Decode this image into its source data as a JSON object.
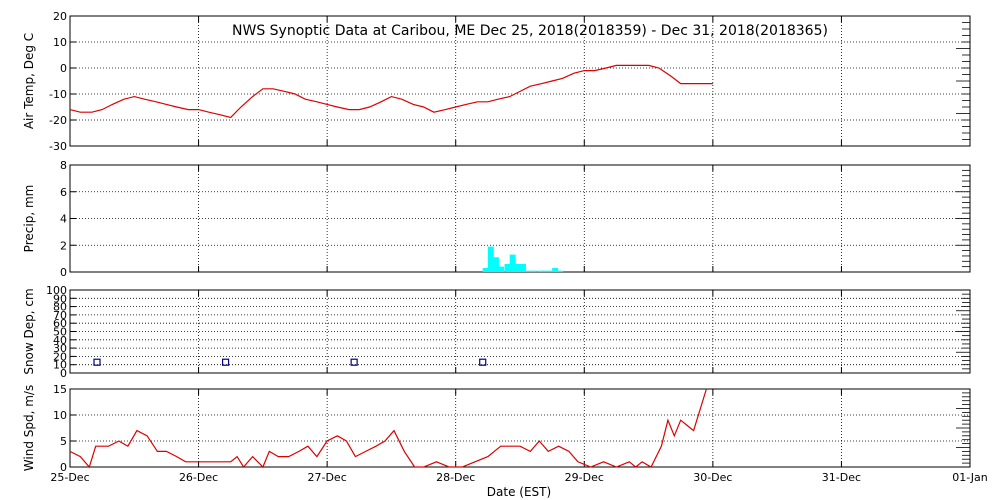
{
  "title": "NWS Synoptic Data at Caribou, ME    Dec 25, 2018(2018359) - Dec 31, 2018(2018365)",
  "xlabel": "Date (EST)",
  "x_tick_labels": [
    "25-Dec",
    "26-Dec",
    "27-Dec",
    "28-Dec",
    "29-Dec",
    "30-Dec",
    "31-Dec",
    "01-Jan"
  ],
  "colors": {
    "temp_line": "#dd0000",
    "precip_bar": "#00ffff",
    "snow_marker": "#00008b",
    "wind_line": "#dd0000"
  },
  "chart_data": [
    {
      "type": "line",
      "ylabel": "Air Temp, Deg C",
      "ylim": [
        -30,
        20
      ],
      "yticks": [
        -30,
        -20,
        -10,
        0,
        10,
        20
      ],
      "xlim": [
        0,
        7
      ],
      "grid": true,
      "series": [
        {
          "x": [
            0,
            0.08,
            0.17,
            0.25,
            0.33,
            0.42,
            0.5,
            0.58,
            0.67,
            0.75,
            0.83,
            0.92,
            1.0,
            1.08,
            1.17,
            1.25,
            1.33,
            1.42,
            1.5,
            1.58,
            1.67,
            1.75,
            1.83,
            1.92,
            2.0,
            2.08,
            2.17,
            2.25,
            2.33,
            2.42,
            2.5,
            2.58,
            2.67,
            2.75,
            2.83,
            2.92,
            3.0,
            3.08,
            3.17,
            3.25,
            3.33,
            3.42,
            3.5,
            3.58,
            3.67,
            3.75,
            3.83,
            3.92,
            4.0,
            4.08,
            4.17,
            4.25,
            4.33,
            4.42,
            4.5,
            4.58,
            4.67,
            4.75,
            4.83,
            4.92,
            5.0
          ],
          "y": [
            -16,
            -17,
            -17,
            -16,
            -14,
            -12,
            -11,
            -12,
            -13,
            -14,
            -15,
            -16,
            -16,
            -17,
            -18,
            -19,
            -15,
            -11,
            -8,
            -8,
            -9,
            -10,
            -12,
            -13,
            -14,
            -15,
            -16,
            -16,
            -15,
            -13,
            -11,
            -12,
            -14,
            -15,
            -17,
            -16,
            -15,
            -14,
            -13,
            -13,
            -12,
            -11,
            -9,
            -7,
            -6,
            -5,
            -4,
            -2,
            -1,
            -1,
            0,
            1,
            1,
            1,
            1,
            0,
            -3,
            -6,
            -6,
            -6,
            -6
          ]
        }
      ]
    },
    {
      "type": "bar",
      "ylabel": "Precip, mm",
      "ylim": [
        0,
        8
      ],
      "yticks": [
        0,
        2,
        4,
        6,
        8
      ],
      "xlim": [
        0,
        7
      ],
      "grid": true,
      "series": [
        {
          "x": [
            3.21,
            3.25,
            3.29,
            3.33,
            3.38,
            3.42,
            3.46,
            3.5,
            3.54,
            3.58,
            3.63,
            3.67,
            3.71,
            3.75,
            3.79,
            3.83
          ],
          "values": [
            0.3,
            1.9,
            1.1,
            0.4,
            0.6,
            1.3,
            0.6,
            0.6,
            0.1,
            0.1,
            0.1,
            0.1,
            0.1,
            0.3,
            0.1,
            0.0
          ]
        }
      ]
    },
    {
      "type": "scatter",
      "ylabel": "Snow Dep, cm",
      "ylim": [
        0,
        100
      ],
      "yticks": [
        0,
        10,
        20,
        30,
        40,
        50,
        60,
        70,
        80,
        90,
        100
      ],
      "xlim": [
        0,
        7
      ],
      "grid": true,
      "series": [
        {
          "x": [
            0.21,
            1.21,
            2.21,
            3.21
          ],
          "y": [
            13,
            13,
            13,
            13
          ]
        }
      ]
    },
    {
      "type": "line",
      "ylabel": "Wind Spd, m/s",
      "ylim": [
        0,
        15
      ],
      "yticks": [
        0,
        5,
        10,
        15
      ],
      "xlim": [
        0,
        7
      ],
      "grid": true,
      "series": [
        {
          "x": [
            0,
            0.08,
            0.15,
            0.2,
            0.3,
            0.38,
            0.45,
            0.52,
            0.6,
            0.68,
            0.75,
            0.83,
            0.9,
            0.98,
            1.05,
            1.15,
            1.25,
            1.3,
            1.35,
            1.42,
            1.5,
            1.55,
            1.62,
            1.7,
            1.78,
            1.85,
            1.92,
            2.0,
            2.08,
            2.15,
            2.22,
            2.3,
            2.38,
            2.45,
            2.52,
            2.6,
            2.68,
            2.75,
            2.85,
            2.95,
            3.05,
            3.15,
            3.25,
            3.35,
            3.42,
            3.5,
            3.58,
            3.65,
            3.72,
            3.8,
            3.88,
            3.95,
            4.05,
            4.15,
            4.25,
            4.35,
            4.4,
            4.45,
            4.52,
            4.6,
            4.65,
            4.7,
            4.75,
            4.8,
            4.85,
            4.95
          ],
          "y": [
            3,
            2,
            0,
            4,
            4,
            5,
            4,
            7,
            6,
            3,
            3,
            2,
            1,
            1,
            1,
            1,
            1,
            2,
            0,
            2,
            0,
            3,
            2,
            2,
            3,
            4,
            2,
            5,
            6,
            5,
            2,
            3,
            4,
            5,
            7,
            3,
            0,
            0,
            1,
            0,
            0,
            1,
            2,
            4,
            4,
            4,
            3,
            5,
            3,
            4,
            3,
            1,
            0,
            1,
            0,
            1,
            0,
            1,
            0,
            4,
            9,
            6,
            9,
            8,
            7,
            15
          ]
        }
      ]
    }
  ]
}
